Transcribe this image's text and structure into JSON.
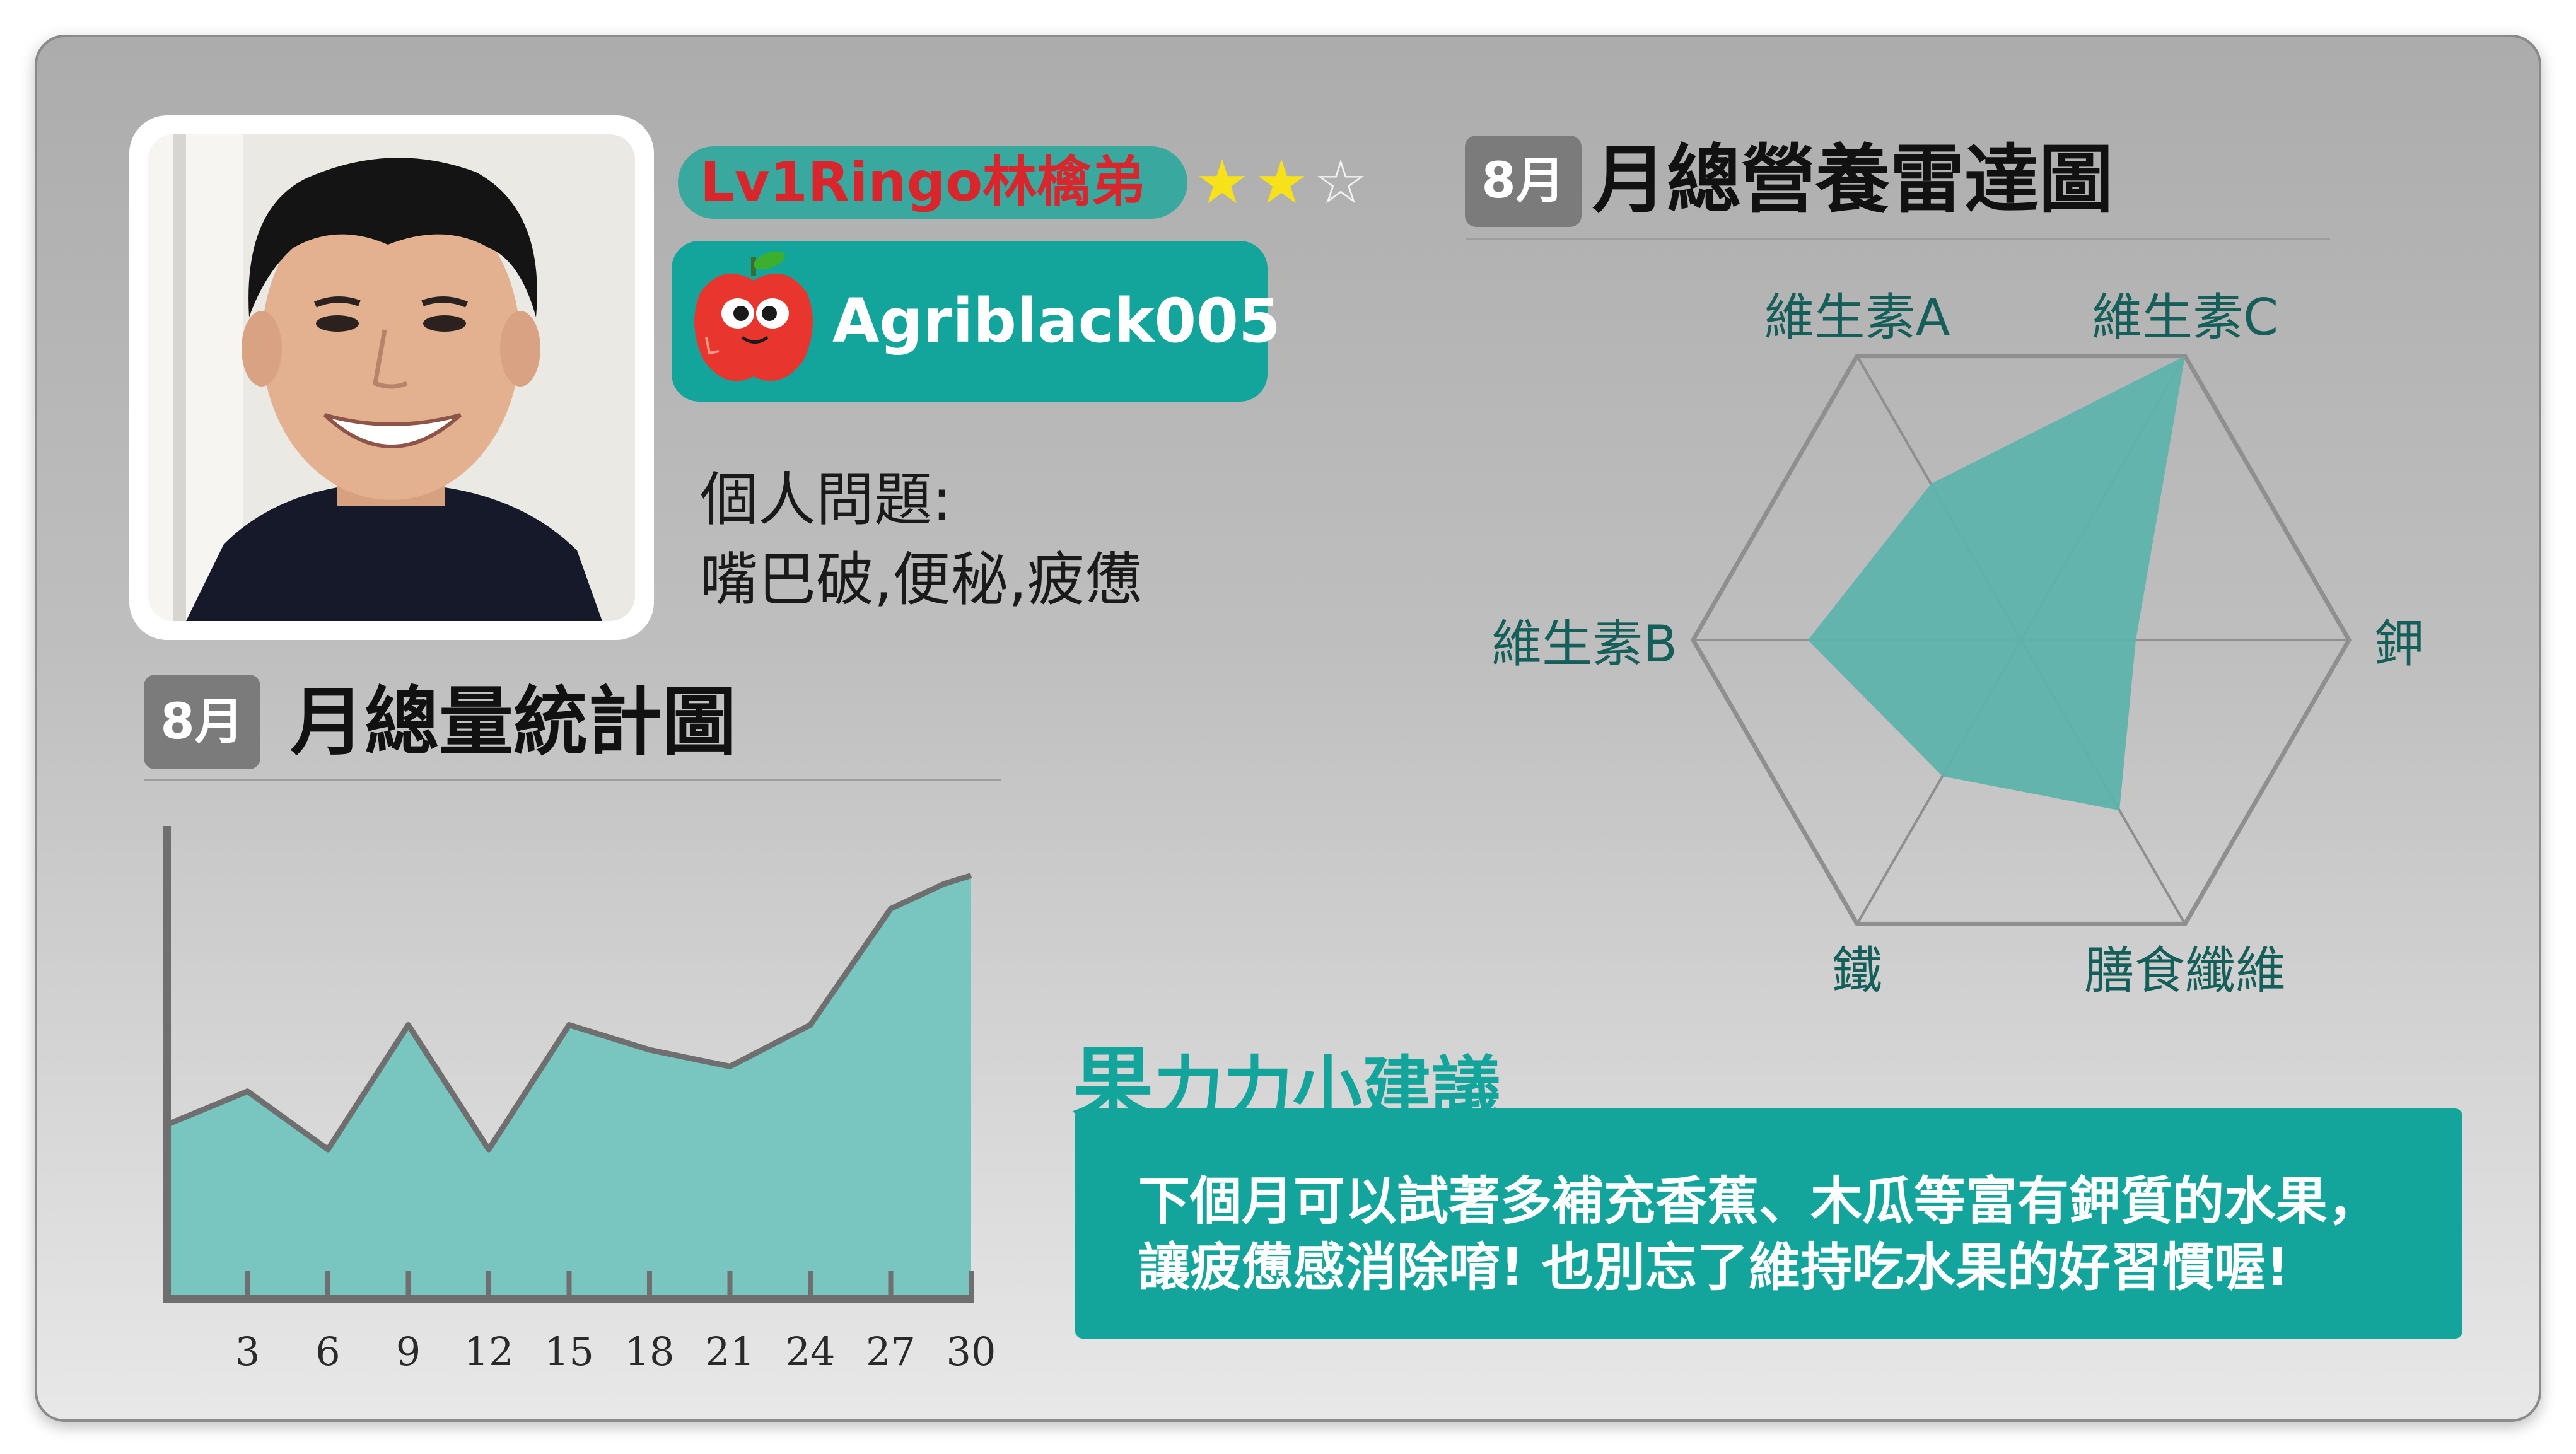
{
  "profile": {
    "user_name": "Lv1Ringo林檎弟",
    "stars": {
      "rating": 2,
      "max": 5,
      "max_visible": 3
    },
    "user_id": "Agriblack005",
    "issues_title": "個人問題:",
    "issues_text": "嘴巴破,便秘,疲憊"
  },
  "radar": {
    "badge": "8月",
    "title": "月總營養雷達圖",
    "axes": [
      "維生素A",
      "維生素C",
      "鉀",
      "膳食纖維",
      "鐵",
      "維生素B"
    ],
    "values": [
      0.55,
      1.0,
      0.35,
      0.6,
      0.48,
      0.65
    ],
    "fill_color": "#5fb3ad",
    "grid_color": "#8f8f8f"
  },
  "monthly": {
    "badge": "8月",
    "title": "月總量統計圖"
  },
  "chart_data": {
    "type": "area",
    "title": "月總量統計圖",
    "x": [
      0,
      3,
      6,
      9,
      12,
      15,
      18,
      21,
      24,
      27,
      29,
      30
    ],
    "values": [
      42,
      50,
      36,
      66,
      36,
      66,
      60,
      56,
      66,
      94,
      100,
      102
    ],
    "x_ticks": [
      "3",
      "6",
      "9",
      "12",
      "15",
      "18",
      "21",
      "24",
      "27",
      "30"
    ],
    "ylim": [
      0,
      120
    ],
    "xlim": [
      0,
      30
    ],
    "fill_color": "#79c5bf",
    "line_color": "#6f6f6f"
  },
  "tip": {
    "title_big": "果",
    "title_rest": "力力小建議",
    "line1": "下個月可以試著多補充香蕉、木瓜等富有鉀質的水果，",
    "line2": "讓疲憊感消除唷! 也別忘了維持吃水果的好習慣喔!"
  },
  "colors": {
    "teal": "#13a59c",
    "name_red": "#d8262c",
    "star_yellow": "#f7e21a"
  }
}
